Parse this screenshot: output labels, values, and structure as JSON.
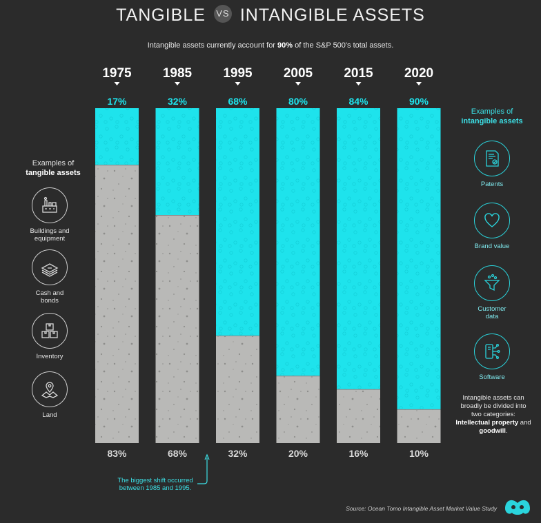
{
  "header": {
    "title_part1": "TANGIBLE",
    "title_vs": "VS",
    "title_part2": "INTANGIBLE ASSETS",
    "subtitle_before": "Intangible assets currently account for ",
    "subtitle_bold": "90%",
    "subtitle_after": " of the S&P 500's total assets."
  },
  "chart_data": {
    "type": "bar",
    "stacked": true,
    "categories": [
      "1975",
      "1985",
      "1995",
      "2005",
      "2015",
      "2020"
    ],
    "series": [
      {
        "name": "Intangible",
        "values": [
          17,
          32,
          68,
          80,
          84,
          90
        ],
        "labels": [
          "17%",
          "32%",
          "68%",
          "80%",
          "84%",
          "90%"
        ],
        "color": "#1ee3ec"
      },
      {
        "name": "Tangible",
        "values": [
          83,
          68,
          32,
          20,
          16,
          10
        ],
        "labels": [
          "83%",
          "68%",
          "32%",
          "20%",
          "16%",
          "10%"
        ],
        "color": "#b9b9b7"
      }
    ],
    "ylim": [
      0,
      100
    ]
  },
  "left_panel": {
    "title_line1": "Examples of",
    "title_line2": "tangible assets",
    "items": [
      {
        "label": "Buildings and\nequipment",
        "icon": "factory-icon"
      },
      {
        "label": "Cash and\nbonds",
        "icon": "cash-icon"
      },
      {
        "label": "Inventory",
        "icon": "boxes-icon"
      },
      {
        "label": "Land",
        "icon": "map-pin-icon"
      }
    ]
  },
  "right_panel": {
    "title_line1": "Examples of",
    "title_line2": "intangible assets",
    "items": [
      {
        "label": "Patents",
        "icon": "certificate-icon"
      },
      {
        "label": "Brand value",
        "icon": "heart-icon"
      },
      {
        "label": "Customer\ndata",
        "icon": "funnel-icon"
      },
      {
        "label": "Software",
        "icon": "circuit-icon"
      }
    ],
    "note_text": "Intangible assets can broadly be divided into two categories: ",
    "note_bold1": "Intellectual property",
    "note_and": " and ",
    "note_bold2": "goodwill",
    "note_end": "."
  },
  "annotation": "The biggest shift occurred\nbetween 1985 and 1995.",
  "source": "Source: Ocean Tomo Intangible Asset Market Value Study",
  "colors": {
    "intangible": "#1ee3ec",
    "tangible": "#b9b9b7",
    "background": "#2b2b2b",
    "accent": "#3ce0e6"
  }
}
